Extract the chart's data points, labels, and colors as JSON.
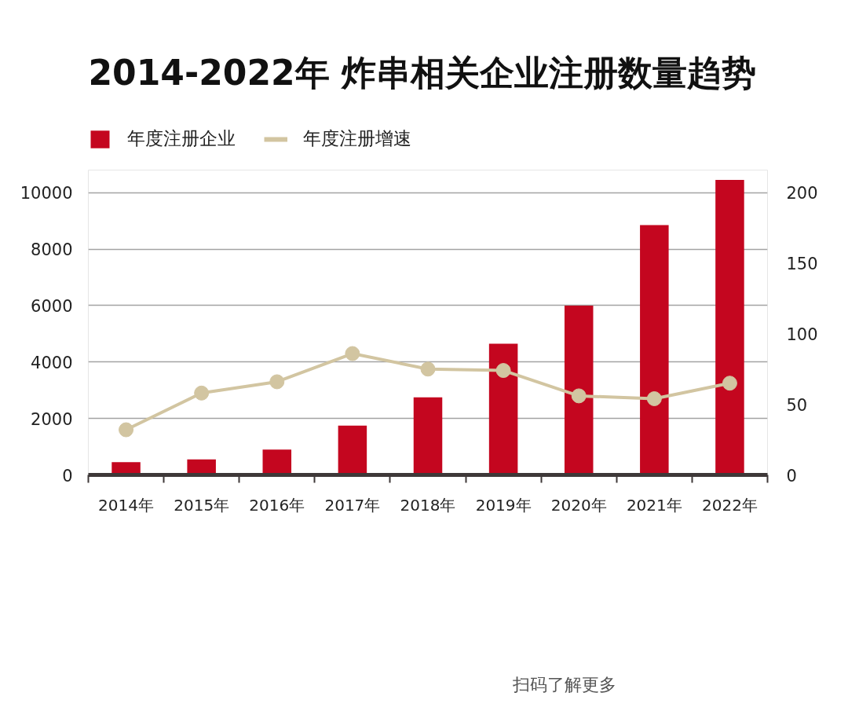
{
  "chart_data": {
    "type": "bar",
    "title": "2014-2022年 炸串相关企业注册数量趋势",
    "categories": [
      "2014年",
      "2015年",
      "2016年",
      "2017年",
      "2018年",
      "2019年",
      "2020年",
      "2021年",
      "2022年"
    ],
    "series": [
      {
        "name": "年度注册企业",
        "color": "#c4061f",
        "values": [
          450,
          550,
          900,
          1750,
          2750,
          4650,
          6000,
          8850,
          10450
        ]
      },
      {
        "name": "年度注册增速",
        "type": "line",
        "axis": "y2",
        "color": "#d2c5a1",
        "marker": "circle",
        "values": [
          32,
          58,
          66,
          86,
          75,
          74,
          56,
          54,
          65
        ]
      }
    ],
    "ylim": [
      0,
      10800
    ],
    "yticks": [
      0,
      2000,
      4000,
      6000,
      8000,
      10000
    ],
    "y2lim": [
      0,
      216
    ],
    "y2ticks": [
      0,
      50,
      100,
      150,
      200
    ],
    "grid": "y",
    "legend": "top left",
    "annotations": [
      "扫码了解更多"
    ]
  }
}
